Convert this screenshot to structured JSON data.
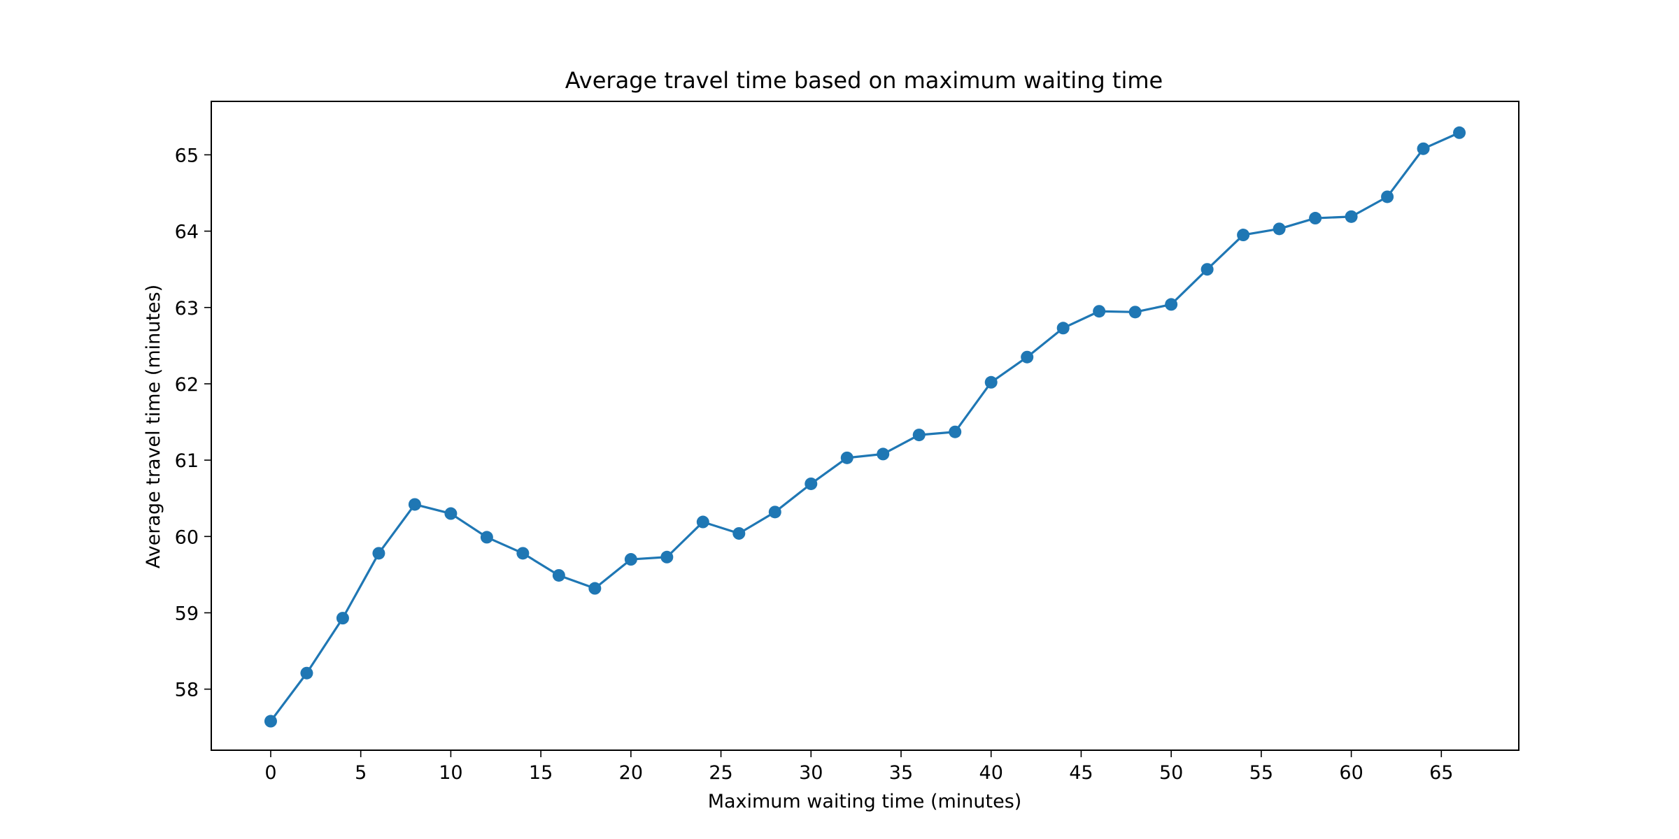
{
  "chart_data": {
    "type": "line",
    "title": "Average travel time based on maximum waiting time",
    "xlabel": "Maximum waiting time (minutes)",
    "ylabel": "Average travel time (minutes)",
    "xlim": [
      -3.3,
      69.3
    ],
    "ylim": [
      57.2,
      65.7
    ],
    "xticks": [
      0,
      5,
      10,
      15,
      20,
      25,
      30,
      35,
      40,
      45,
      50,
      55,
      60,
      65
    ],
    "yticks": [
      58,
      59,
      60,
      61,
      62,
      63,
      64,
      65
    ],
    "grid": false,
    "series": [
      {
        "color": "#1f77b4",
        "marker": "circle",
        "x": [
          0,
          2,
          4,
          6,
          8,
          10,
          12,
          14,
          16,
          18,
          20,
          22,
          24,
          26,
          28,
          30,
          32,
          34,
          36,
          38,
          40,
          42,
          44,
          46,
          48,
          50,
          52,
          54,
          56,
          58,
          60,
          62,
          64,
          66
        ],
        "y": [
          57.58,
          58.21,
          58.93,
          59.78,
          60.42,
          60.3,
          59.99,
          59.78,
          59.49,
          59.32,
          59.7,
          59.73,
          60.19,
          60.04,
          60.32,
          60.69,
          61.03,
          61.08,
          61.33,
          61.37,
          62.02,
          62.35,
          62.73,
          62.95,
          62.94,
          63.04,
          63.5,
          63.95,
          64.03,
          64.17,
          64.19,
          64.45,
          65.08,
          65.29
        ]
      }
    ]
  }
}
